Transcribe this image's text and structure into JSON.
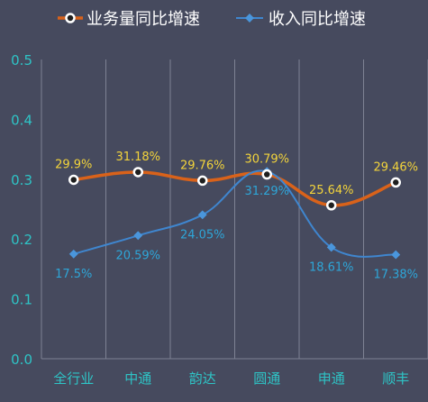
{
  "chart_data": {
    "type": "line",
    "categories": [
      "全行业",
      "中通",
      "韵达",
      "圆通",
      "申通",
      "顺丰"
    ],
    "ylim": [
      0,
      0.5
    ],
    "yticks": [
      "0.0",
      "0.1",
      "0.2",
      "0.3",
      "0.4",
      "0.5"
    ],
    "grid": "vertical",
    "legend_position": "top",
    "series": [
      {
        "name": "业务量同比增速",
        "values": [
          0.299,
          0.3118,
          0.2976,
          0.3079,
          0.2564,
          0.2946
        ],
        "labels": [
          "29.9%",
          "31.18%",
          "29.76%",
          "30.79%",
          "25.64%",
          "29.46%"
        ],
        "color": "#d9621a",
        "label_color": "#f3d43b"
      },
      {
        "name": "收入同比增速",
        "values": [
          0.175,
          0.2059,
          0.2405,
          0.3129,
          0.1861,
          0.1738
        ],
        "labels": [
          "17.5%",
          "20.59%",
          "24.05%",
          "31.29%",
          "18.61%",
          "17.38%"
        ],
        "color": "#3f86cf",
        "label_color": "#2ea6d8"
      }
    ]
  }
}
